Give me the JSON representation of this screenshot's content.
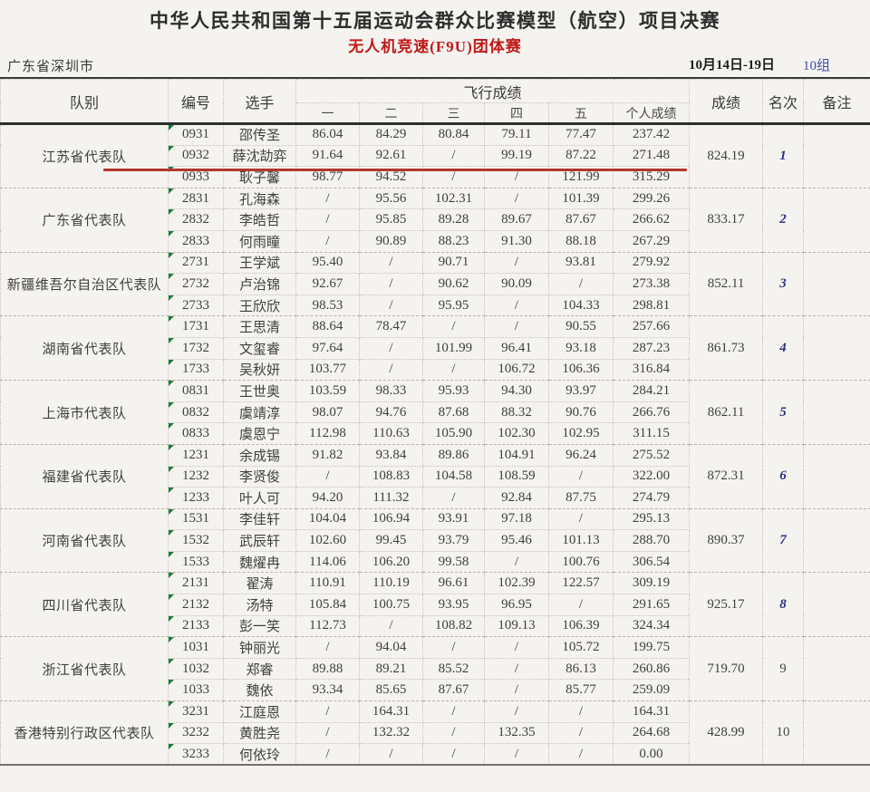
{
  "header": {
    "title": "中华人民共和国第十五届运动会群众比赛模型（航空）项目决赛",
    "subtitle": "无人机竞速(F9U)团体赛",
    "location": "广东省深圳市",
    "date_range": "10月14日-19日",
    "group_label": "10组"
  },
  "colors": {
    "highlight_red": "#b5362e",
    "subtitle_red": "#c01818",
    "rank_blue": "#2d2f8a",
    "group_blue": "#3c4cb0",
    "marker_green": "#1f7a3c"
  },
  "table": {
    "col_team": "队别",
    "col_number": "编号",
    "col_player": "选手",
    "col_flight": "飞行成绩",
    "sub_cols": [
      "一",
      "二",
      "三",
      "四",
      "五",
      "个人成绩"
    ],
    "col_score": "成绩",
    "col_rank": "名次",
    "col_remark": "备注",
    "teams": [
      {
        "name": "江苏省代表队",
        "score": "824.19",
        "rank": "1",
        "rank_blue": true,
        "remark": "",
        "players": [
          {
            "no": "0931",
            "name": "邵传圣",
            "rounds": [
              "86.04",
              "84.29",
              "80.84",
              "79.11",
              "77.47"
            ],
            "total": "237.42",
            "highlighted": false
          },
          {
            "no": "0932",
            "name": "薛沈劼弈",
            "rounds": [
              "91.64",
              "92.61",
              "/",
              "99.19",
              "87.22"
            ],
            "total": "271.48",
            "highlighted": true
          },
          {
            "no": "0933",
            "name": "耿子馨",
            "rounds": [
              "98.77",
              "94.52",
              "/",
              "/",
              "121.99"
            ],
            "total": "315.29",
            "highlighted": false
          }
        ]
      },
      {
        "name": "广东省代表队",
        "score": "833.17",
        "rank": "2",
        "rank_blue": true,
        "remark": "",
        "players": [
          {
            "no": "2831",
            "name": "孔海森",
            "rounds": [
              "/",
              "95.56",
              "102.31",
              "/",
              "101.39"
            ],
            "total": "299.26",
            "highlighted": false
          },
          {
            "no": "2832",
            "name": "李皓哲",
            "rounds": [
              "/",
              "95.85",
              "89.28",
              "89.67",
              "87.67"
            ],
            "total": "266.62",
            "highlighted": false
          },
          {
            "no": "2833",
            "name": "何雨瞳",
            "rounds": [
              "/",
              "90.89",
              "88.23",
              "91.30",
              "88.18"
            ],
            "total": "267.29",
            "highlighted": false
          }
        ]
      },
      {
        "name": "新疆维吾尔自治区代表队",
        "score": "852.11",
        "rank": "3",
        "rank_blue": true,
        "remark": "",
        "players": [
          {
            "no": "2731",
            "name": "王学斌",
            "rounds": [
              "95.40",
              "/",
              "90.71",
              "/",
              "93.81"
            ],
            "total": "279.92",
            "highlighted": false
          },
          {
            "no": "2732",
            "name": "卢治锦",
            "rounds": [
              "92.67",
              "/",
              "90.62",
              "90.09",
              "/"
            ],
            "total": "273.38",
            "highlighted": false
          },
          {
            "no": "2733",
            "name": "王欣欣",
            "rounds": [
              "98.53",
              "/",
              "95.95",
              "/",
              "104.33"
            ],
            "total": "298.81",
            "highlighted": false
          }
        ]
      },
      {
        "name": "湖南省代表队",
        "score": "861.73",
        "rank": "4",
        "rank_blue": true,
        "remark": "",
        "players": [
          {
            "no": "1731",
            "name": "王思清",
            "rounds": [
              "88.64",
              "78.47",
              "/",
              "/",
              "90.55"
            ],
            "total": "257.66",
            "highlighted": false
          },
          {
            "no": "1732",
            "name": "文玺睿",
            "rounds": [
              "97.64",
              "/",
              "101.99",
              "96.41",
              "93.18"
            ],
            "total": "287.23",
            "highlighted": false
          },
          {
            "no": "1733",
            "name": "吴秋妍",
            "rounds": [
              "103.77",
              "/",
              "/",
              "106.72",
              "106.36"
            ],
            "total": "316.84",
            "highlighted": false
          }
        ]
      },
      {
        "name": "上海市代表队",
        "score": "862.11",
        "rank": "5",
        "rank_blue": true,
        "remark": "",
        "players": [
          {
            "no": "0831",
            "name": "王世奥",
            "rounds": [
              "103.59",
              "98.33",
              "95.93",
              "94.30",
              "93.97"
            ],
            "total": "284.21",
            "highlighted": false
          },
          {
            "no": "0832",
            "name": "虞靖淳",
            "rounds": [
              "98.07",
              "94.76",
              "87.68",
              "88.32",
              "90.76"
            ],
            "total": "266.76",
            "highlighted": false
          },
          {
            "no": "0833",
            "name": "虞恩宁",
            "rounds": [
              "112.98",
              "110.63",
              "105.90",
              "102.30",
              "102.95"
            ],
            "total": "311.15",
            "highlighted": false
          }
        ]
      },
      {
        "name": "福建省代表队",
        "score": "872.31",
        "rank": "6",
        "rank_blue": true,
        "remark": "",
        "players": [
          {
            "no": "1231",
            "name": "余成锡",
            "rounds": [
              "91.82",
              "93.84",
              "89.86",
              "104.91",
              "96.24"
            ],
            "total": "275.52",
            "highlighted": false
          },
          {
            "no": "1232",
            "name": "李贤俊",
            "rounds": [
              "/",
              "108.83",
              "104.58",
              "108.59",
              "/"
            ],
            "total": "322.00",
            "highlighted": false
          },
          {
            "no": "1233",
            "name": "叶人可",
            "rounds": [
              "94.20",
              "111.32",
              "/",
              "92.84",
              "87.75"
            ],
            "total": "274.79",
            "highlighted": false
          }
        ]
      },
      {
        "name": "河南省代表队",
        "score": "890.37",
        "rank": "7",
        "rank_blue": true,
        "remark": "",
        "players": [
          {
            "no": "1531",
            "name": "李佳轩",
            "rounds": [
              "104.04",
              "106.94",
              "93.91",
              "97.18",
              "/"
            ],
            "total": "295.13",
            "highlighted": false
          },
          {
            "no": "1532",
            "name": "武辰轩",
            "rounds": [
              "102.60",
              "99.45",
              "93.79",
              "95.46",
              "101.13"
            ],
            "total": "288.70",
            "highlighted": false
          },
          {
            "no": "1533",
            "name": "魏燿冉",
            "rounds": [
              "114.06",
              "106.20",
              "99.58",
              "/",
              "100.76"
            ],
            "total": "306.54",
            "highlighted": false
          }
        ]
      },
      {
        "name": "四川省代表队",
        "score": "925.17",
        "rank": "8",
        "rank_blue": true,
        "remark": "",
        "players": [
          {
            "no": "2131",
            "name": "翟涛",
            "rounds": [
              "110.91",
              "110.19",
              "96.61",
              "102.39",
              "122.57"
            ],
            "total": "309.19",
            "highlighted": false
          },
          {
            "no": "2132",
            "name": "汤特",
            "rounds": [
              "105.84",
              "100.75",
              "93.95",
              "96.95",
              "/"
            ],
            "total": "291.65",
            "highlighted": false
          },
          {
            "no": "2133",
            "name": "彭一笑",
            "rounds": [
              "112.73",
              "/",
              "108.82",
              "109.13",
              "106.39"
            ],
            "total": "324.34",
            "highlighted": false
          }
        ]
      },
      {
        "name": "浙江省代表队",
        "score": "719.70",
        "rank": "9",
        "rank_blue": false,
        "remark": "",
        "players": [
          {
            "no": "1031",
            "name": "钟丽光",
            "rounds": [
              "/",
              "94.04",
              "/",
              "/",
              "105.72"
            ],
            "total": "199.75",
            "highlighted": false
          },
          {
            "no": "1032",
            "name": "郑睿",
            "rounds": [
              "89.88",
              "89.21",
              "85.52",
              "/",
              "86.13"
            ],
            "total": "260.86",
            "highlighted": false
          },
          {
            "no": "1033",
            "name": "魏依",
            "rounds": [
              "93.34",
              "85.65",
              "87.67",
              "/",
              "85.77"
            ],
            "total": "259.09",
            "highlighted": false
          }
        ]
      },
      {
        "name": "香港特别行政区代表队",
        "score": "428.99",
        "rank": "10",
        "rank_blue": false,
        "remark": "",
        "players": [
          {
            "no": "3231",
            "name": "江庭恩",
            "rounds": [
              "/",
              "164.31",
              "/",
              "/",
              "/"
            ],
            "total": "164.31",
            "highlighted": false
          },
          {
            "no": "3232",
            "name": "黄胜尧",
            "rounds": [
              "/",
              "132.32",
              "/",
              "132.35",
              "/"
            ],
            "total": "264.68",
            "highlighted": false
          },
          {
            "no": "3233",
            "name": "何依玲",
            "rounds": [
              "/",
              "/",
              "/",
              "/",
              "/"
            ],
            "total": "0.00",
            "highlighted": false
          }
        ]
      }
    ]
  }
}
